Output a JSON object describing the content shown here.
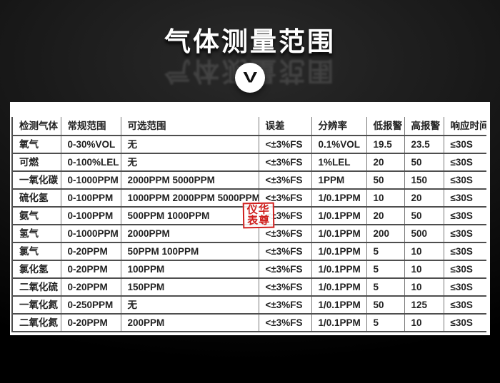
{
  "header": {
    "title": "气体测量范围",
    "chevron_glyph": "V"
  },
  "watermark": {
    "line1": "仪华",
    "line2": "表尊"
  },
  "colors": {
    "watermark_red": "#cf1f1d",
    "panel_background": "#ffffff",
    "page_background": "#0d0d0d",
    "table_line_dark": "#4e4e4e",
    "table_line_light": "#7a7a7a"
  },
  "table": {
    "headers": [
      "检测气体",
      "常规范围",
      "可选范围",
      "误差",
      "分辨率",
      "低报警",
      "高报警",
      "响应时间"
    ],
    "rows": [
      [
        "氧气",
        "0-30%VOL",
        "无",
        "<±3%FS",
        "0.1%VOL",
        "19.5",
        "23.5",
        "≤30S"
      ],
      [
        "可燃",
        "0-100%LEL",
        "无",
        "<±3%FS",
        "1%LEL",
        "20",
        "50",
        "≤30S"
      ],
      [
        "一氧化碳",
        "0-1000PPM",
        "2000PPM 5000PPM",
        "<±3%FS",
        "1PPM",
        "50",
        "150",
        "≤30S"
      ],
      [
        "硫化氢",
        "0-100PPM",
        "1000PPM 2000PPM 5000PPM",
        "<±3%FS",
        "1/0.1PPM",
        "10",
        "20",
        "≤30S"
      ],
      [
        "氨气",
        "0-100PPM",
        "500PPM 1000PPM",
        "<±3%FS",
        "1/0.1PPM",
        "20",
        "50",
        "≤30S"
      ],
      [
        "氢气",
        "0-1000PPM",
        "2000PPM",
        "<±3%FS",
        "1/0.1PPM",
        "200",
        "500",
        "≤30S"
      ],
      [
        "氯气",
        "0-20PPM",
        "50PPM 100PPM",
        "<±3%FS",
        "1/0.1PPM",
        "5",
        "10",
        "≤30S"
      ],
      [
        "氯化氢",
        "0-20PPM",
        "100PPM",
        "<±3%FS",
        "1/0.1PPM",
        "5",
        "10",
        "≤30S"
      ],
      [
        "二氧化硫",
        "0-20PPM",
        "150PPM",
        "<±3%FS",
        "1/0.1PPM",
        "5",
        "10",
        "≤30S"
      ],
      [
        "一氧化氮",
        "0-250PPM",
        "无",
        "<±3%FS",
        "1/0.1PPM",
        "50",
        "125",
        "≤30S"
      ],
      [
        "二氧化氮",
        "0-20PPM",
        "200PPM",
        "<±3%FS",
        "1/0.1PPM",
        "5",
        "10",
        "≤30S"
      ]
    ]
  }
}
